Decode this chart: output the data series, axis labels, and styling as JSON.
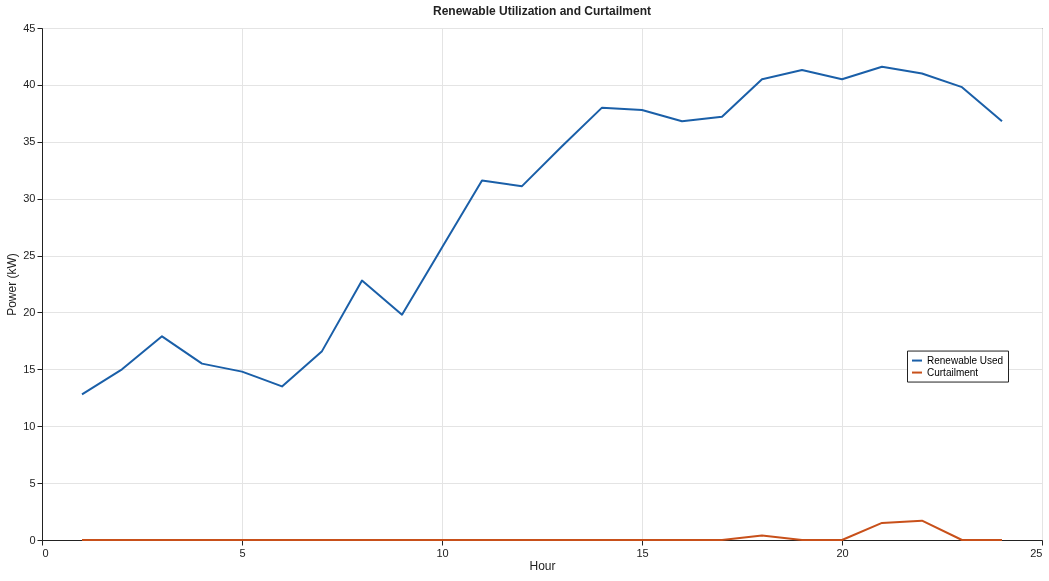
{
  "chart_data": {
    "type": "line",
    "title": "Renewable Utilization and Curtailment",
    "xlabel": "Hour",
    "ylabel": "Power (kW)",
    "x": [
      1,
      2,
      3,
      4,
      5,
      6,
      7,
      8,
      9,
      10,
      11,
      12,
      13,
      14,
      15,
      16,
      17,
      18,
      19,
      20,
      21,
      22,
      23,
      24
    ],
    "series": [
      {
        "name": "Renewable Used",
        "color": "#1a5fa8",
        "values": [
          12.8,
          15.0,
          17.9,
          15.5,
          14.8,
          13.5,
          16.6,
          22.8,
          19.8,
          25.7,
          31.6,
          31.1,
          34.6,
          38.0,
          37.8,
          36.8,
          37.2,
          40.5,
          41.3,
          40.5,
          41.6,
          41.0,
          39.8,
          36.8
        ]
      },
      {
        "name": "Curtailment",
        "color": "#c8501a",
        "values": [
          0,
          0,
          0,
          0,
          0,
          0,
          0,
          0,
          0,
          0,
          0,
          0,
          0,
          0,
          0,
          0,
          0,
          0.4,
          0,
          0,
          1.5,
          1.7,
          0,
          0
        ]
      }
    ],
    "xlim": [
      0,
      25
    ],
    "xticks": [
      0,
      5,
      10,
      15,
      20,
      25
    ],
    "ylim": [
      0,
      45
    ],
    "yticks": [
      0,
      5,
      10,
      15,
      20,
      25,
      30,
      35,
      40,
      45
    ],
    "grid": true,
    "legend": "right",
    "marker": "none",
    "line_style": "solid"
  }
}
